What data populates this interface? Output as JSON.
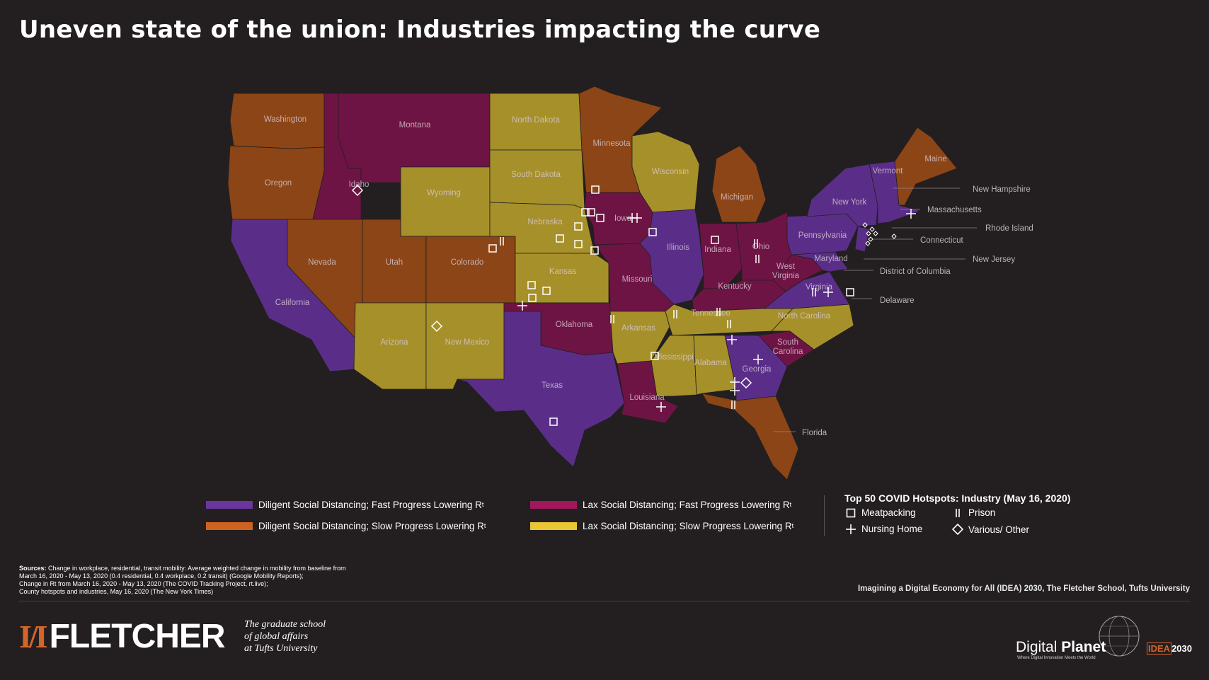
{
  "title": "Uneven state of the union: Industries impacting the curve",
  "colors": {
    "diligent_fast": "#5a2e88",
    "diligent_slow": "#8c4516",
    "lax_fast": "#6e1444",
    "lax_slow": "#a6902a",
    "legend_diligent_fast": "#6b35a0",
    "legend_diligent_slow": "#d0621f",
    "legend_lax_fast": "#a3185c",
    "legend_lax_slow": "#e8c634"
  },
  "states": {
    "washington": "Washington",
    "oregon": "Oregon",
    "california": "California",
    "idaho": "Idaho",
    "nevada": "Nevada",
    "montana": "Montana",
    "wyoming": "Wyoming",
    "utah": "Utah",
    "colorado": "Colorado",
    "arizona": "Arizona",
    "new_mexico": "New Mexico",
    "north_dakota": "North Dakota",
    "south_dakota": "South Dakota",
    "nebraska": "Nebraska",
    "kansas": "Kansas",
    "oklahoma": "Oklahoma",
    "texas": "Texas",
    "minnesota": "Minnesota",
    "iowa": "Iowa",
    "missouri": "Missouri",
    "arkansas": "Arkansas",
    "louisiana": "Louisiana",
    "wisconsin": "Wisconsin",
    "illinois": "Illinois",
    "michigan": "Michigan",
    "indiana": "Indiana",
    "ohio": "Ohio",
    "kentucky": "Kentucky",
    "tennessee": "Tennessee",
    "mississippi": "Mississippi",
    "alabama": "Alabama",
    "georgia": "Georgia",
    "florida": "Florida",
    "south_carolina_1": "South",
    "south_carolina_2": "Carolina",
    "north_carolina": "North Carolina",
    "virginia": "Virginia",
    "west_virginia_1": "West",
    "west_virginia_2": "Virginia",
    "pennsylvania": "Pennsylvania",
    "new_york": "New York",
    "maryland": "Maryland",
    "vermont": "Vermont",
    "maine": "Maine"
  },
  "callouts": {
    "new_hampshire": "New Hampshire",
    "massachusetts": "Massachusetts",
    "rhode_island": "Rhode Island",
    "connecticut": "Connecticut",
    "new_jersey": "New Jersey",
    "dc": "District of Columbia",
    "delaware": "Delaware",
    "florida": "Florida"
  },
  "legend": {
    "diligent_fast": "Diligent Social Distancing; Fast Progress Lowering R",
    "diligent_slow": "Diligent Social Distancing; Slow Progress Lowering R",
    "lax_fast": "Lax Social Distancing; Fast Progress Lowering R",
    "lax_slow": "Lax Social Distancing; Slow Progress Lowering R",
    "subscript": "t"
  },
  "hotspots": {
    "title": "Top 50 COVID Hotspots: Industry (May 16, 2020)",
    "meatpacking": "Meatpacking",
    "prison": "Prison",
    "nursing_home": "Nursing Home",
    "other": "Various/ Other"
  },
  "sources": {
    "label": "Sources:",
    "line1": "Change in workplace, residential, transit mobility: Average weighted change in mobility from baseline from",
    "line2": "March 16, 2020 - May 13, 2020 (0.4 residential, 0.4 workplace, 0.2 transit) (Google Mobility Reports);",
    "line3": "Change in Rt from March 16, 2020 - May 13, 2020 (The COVID Tracking Project, rt.live);",
    "line4": "County hotspots and industries, May 16, 2020 (The New York Times)"
  },
  "credit": "Imagining a Digital Economy for All (IDEA) 2030, The Fletcher School, Tufts University",
  "footer": {
    "fletcher_mark": "I/I",
    "fletcher_word": "FLETCHER",
    "grad_1": "The graduate school",
    "grad_2": "of global affairs",
    "grad_3": "at Tufts University",
    "dp_1": "Digital ",
    "dp_2": "Planet",
    "dp_tag": "Where Digital Innovation Meets the World",
    "idea_1": "IDEA",
    "idea_2": "2030"
  }
}
